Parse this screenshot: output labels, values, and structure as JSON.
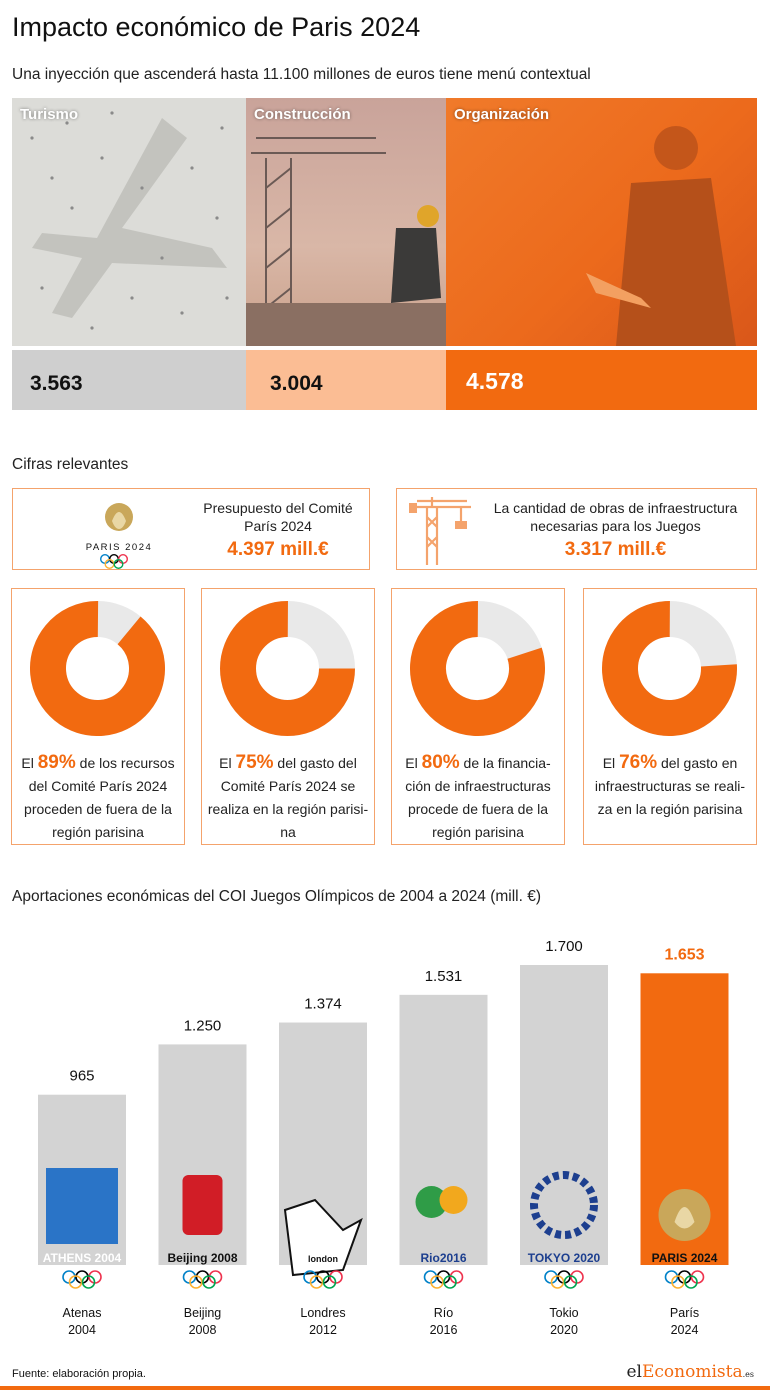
{
  "header": {
    "title": "Impacto económico de Paris 2024",
    "subtitle": "Una inyección que ascenderá hasta 11.100 millones de euros tiene menú contextual"
  },
  "categories": [
    {
      "label": "Turismo",
      "value": "3.563"
    },
    {
      "label": "Construcción",
      "value": "3.004"
    },
    {
      "label": "Organización",
      "value": "4.578"
    }
  ],
  "cifras": {
    "heading": "Cifras relevantes",
    "budget_text": "Presupuesto del Comité París 2024",
    "budget_value": "4.397 mill.€",
    "infra_text": "La cantidad de obras de infraestructura necesarias para los Juegos",
    "infra_value": "3.317 mill.€",
    "logo_text": "PARIS 2024"
  },
  "donuts": [
    {
      "pct": 89,
      "pct_label": "89%",
      "before": "El ",
      "after": " de los recursos del Comité París 2024 proceden de fuera de la región parisina"
    },
    {
      "pct": 75,
      "pct_label": "75%",
      "before": "El ",
      "after": " del gasto del Comité París 2024 se realiza en la región parisi-na"
    },
    {
      "pct": 80,
      "pct_label": "80%",
      "before": "El ",
      "after": " de la financia-ción de infraestructuras procede de fuera de la región parisina"
    },
    {
      "pct": 76,
      "pct_label": "76%",
      "before": "El ",
      "after": " del gasto en infraestructuras se reali-za en la región parisina"
    }
  ],
  "chart_data": {
    "type": "bar",
    "title": "Aportaciones económicas del COI Juegos Olímpicos de 2004 a 2024 (mill. €)",
    "categories": [
      "Atenas 2004",
      "Beijing 2008",
      "Londres 2012",
      "Río 2016",
      "Tokio 2020",
      "París 2024"
    ],
    "category_lines": [
      [
        "Atenas",
        "2004"
      ],
      [
        "Beijing",
        "2008"
      ],
      [
        "Londres",
        "2012"
      ],
      [
        "Río",
        "2016"
      ],
      [
        "Tokio",
        "2020"
      ],
      [
        "París",
        "2024"
      ]
    ],
    "values": [
      965,
      1250,
      1374,
      1531,
      1700,
      1653
    ],
    "value_labels": [
      "965",
      "1.250",
      "1.374",
      "1.531",
      "1.700",
      "1.653"
    ],
    "logo_texts": [
      "ATHENS 2004",
      "Beijing 2008",
      "london",
      "Rio2016",
      "TOKYO 2020",
      "PARIS 2024"
    ],
    "highlight_index": 5,
    "colors": {
      "bar": "#d3d3d3",
      "highlight": "#f26a10"
    }
  },
  "colors": {
    "accent": "#f26a10",
    "light_orange": "#fbbd94",
    "grey": "#cfcfcf",
    "donut_rest": "#e9e9e9"
  },
  "footer": {
    "source": "Fuente: elaboración propia.",
    "brand_pre": "el",
    "brand_mid": "Economista",
    "brand_suffix": ".es"
  }
}
